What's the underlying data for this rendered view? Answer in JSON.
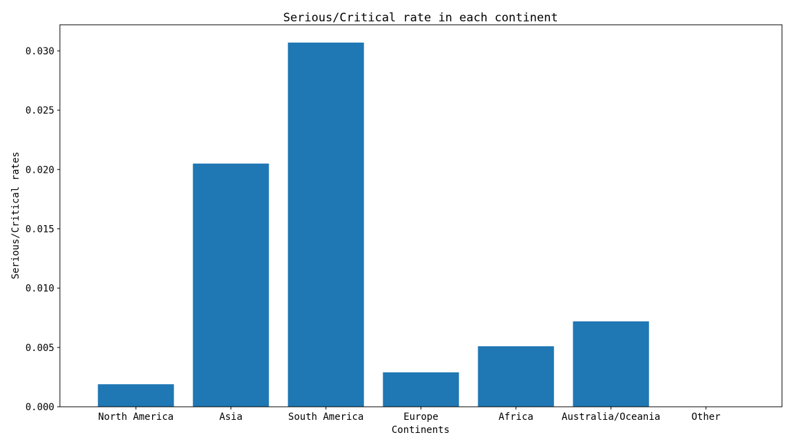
{
  "chart_data": {
    "type": "bar",
    "title": "Serious/Critical rate in each continent",
    "xlabel": "Continents",
    "ylabel": "Serious/Critical rates",
    "categories": [
      "North America",
      "Asia",
      "South America",
      "Europe",
      "Africa",
      "Australia/Oceania",
      "Other"
    ],
    "values": [
      0.0019,
      0.0205,
      0.0307,
      0.0029,
      0.0051,
      0.0072,
      0.0
    ],
    "ylim": [
      0,
      0.0322
    ],
    "yticks": [
      0.0,
      0.005,
      0.01,
      0.015,
      0.02,
      0.025,
      0.03
    ],
    "ytick_labels": [
      "0.000",
      "0.005",
      "0.010",
      "0.015",
      "0.020",
      "0.025",
      "0.030"
    ],
    "grid": false,
    "legend": "none",
    "bar_color": "#1f77b4"
  }
}
